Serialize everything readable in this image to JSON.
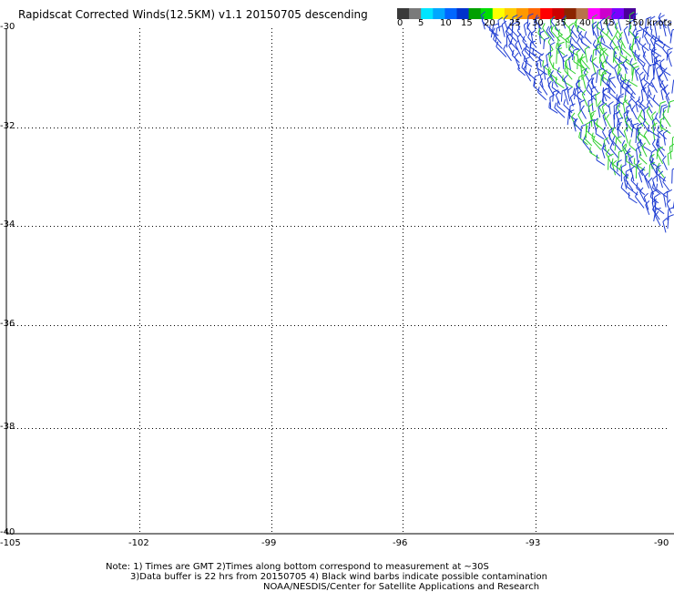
{
  "title": "Rapidscat Corrected Winds(12.5KM) v1.1 20150705 descending",
  "colorbar": {
    "colors": [
      "#3a3a3a",
      "#7a7a7a",
      "#00e5ff",
      "#00a8ff",
      "#0066ff",
      "#0033cc",
      "#00a000",
      "#00dd00",
      "#ffff00",
      "#ffcc00",
      "#ff9900",
      "#ff6600",
      "#ff0000",
      "#cc0000",
      "#8b2500",
      "#b8734a",
      "#ff00ff",
      "#cc00cc",
      "#7a00ff",
      "#4a0099"
    ],
    "labels": [
      "0",
      "5",
      "10",
      "15",
      "20",
      "25",
      "30",
      "35",
      "40",
      "45",
      ">50 knots"
    ]
  },
  "axes": {
    "lat_labels": [
      "-30",
      "-32",
      "-34",
      "-36",
      "-38",
      "-40"
    ],
    "lon_labels": [
      "-105",
      "-102",
      "-99",
      "-96",
      "-93",
      "-90"
    ]
  },
  "wind_barbs": {
    "colors": {
      "blue": "#1e3cd2",
      "green": "#2fd02f"
    },
    "region": "Southeast Pacific, approx. 90–94W, 30–34S",
    "dominant_speeds_knots": "15-20"
  },
  "notes": [
    "Note: 1) Times are GMT 2)Times along bottom correspond to measurement at ~30S",
    "3)Data buffer is 22 hrs from 20150705 4) Black wind barbs indicate possible contamination",
    "NOAA/NESDIS/Center for Satellite Applications and Research"
  ]
}
